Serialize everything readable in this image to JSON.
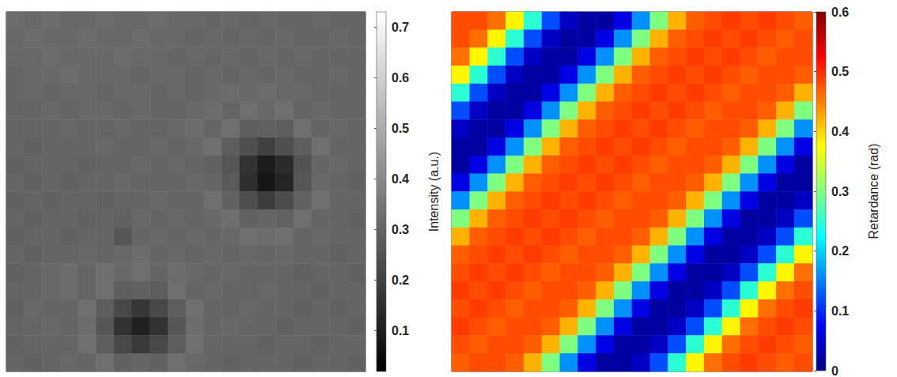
{
  "chart_data": [
    {
      "type": "heatmap",
      "color": "gray",
      "tick_labels": false,
      "cells": [
        [
          0.32,
          0.31,
          0.32,
          0.31,
          0.31,
          0.32,
          0.31,
          0.31,
          0.32,
          0.31,
          0.31,
          0.3,
          0.31,
          0.3,
          0.31,
          0.3,
          0.3,
          0.31,
          0.3,
          0.3
        ],
        [
          0.31,
          0.32,
          0.31,
          0.31,
          0.32,
          0.31,
          0.31,
          0.32,
          0.31,
          0.31,
          0.3,
          0.31,
          0.3,
          0.31,
          0.3,
          0.31,
          0.3,
          0.3,
          0.31,
          0.3
        ],
        [
          0.31,
          0.31,
          0.32,
          0.31,
          0.31,
          0.31,
          0.32,
          0.31,
          0.31,
          0.3,
          0.31,
          0.3,
          0.31,
          0.3,
          0.31,
          0.3,
          0.31,
          0.3,
          0.3,
          0.3
        ],
        [
          0.3,
          0.31,
          0.31,
          0.32,
          0.31,
          0.31,
          0.31,
          0.3,
          0.31,
          0.31,
          0.3,
          0.31,
          0.3,
          0.31,
          0.3,
          0.31,
          0.3,
          0.3,
          0.31,
          0.3
        ],
        [
          0.3,
          0.31,
          0.3,
          0.31,
          0.31,
          0.3,
          0.31,
          0.31,
          0.3,
          0.31,
          0.3,
          0.31,
          0.32,
          0.31,
          0.32,
          0.31,
          0.31,
          0.3,
          0.3,
          0.3
        ],
        [
          0.3,
          0.3,
          0.31,
          0.3,
          0.31,
          0.31,
          0.3,
          0.31,
          0.3,
          0.3,
          0.31,
          0.32,
          0.3,
          0.33,
          0.31,
          0.33,
          0.3,
          0.31,
          0.3,
          0.3
        ],
        [
          0.3,
          0.3,
          0.3,
          0.31,
          0.3,
          0.3,
          0.31,
          0.3,
          0.3,
          0.31,
          0.32,
          0.3,
          0.33,
          0.28,
          0.29,
          0.28,
          0.33,
          0.3,
          0.31,
          0.3
        ],
        [
          0.3,
          0.29,
          0.3,
          0.3,
          0.3,
          0.31,
          0.3,
          0.3,
          0.31,
          0.3,
          0.31,
          0.33,
          0.28,
          0.24,
          0.2,
          0.24,
          0.28,
          0.33,
          0.3,
          0.3
        ],
        [
          0.29,
          0.3,
          0.3,
          0.3,
          0.29,
          0.3,
          0.3,
          0.31,
          0.3,
          0.31,
          0.3,
          0.29,
          0.26,
          0.16,
          0.1,
          0.14,
          0.25,
          0.3,
          0.31,
          0.3
        ],
        [
          0.3,
          0.29,
          0.3,
          0.29,
          0.3,
          0.3,
          0.31,
          0.3,
          0.3,
          0.3,
          0.31,
          0.3,
          0.27,
          0.15,
          0.08,
          0.12,
          0.26,
          0.31,
          0.3,
          0.29
        ],
        [
          0.29,
          0.3,
          0.29,
          0.3,
          0.3,
          0.29,
          0.3,
          0.3,
          0.31,
          0.3,
          0.3,
          0.33,
          0.29,
          0.24,
          0.19,
          0.23,
          0.29,
          0.33,
          0.3,
          0.3
        ],
        [
          0.3,
          0.29,
          0.3,
          0.3,
          0.29,
          0.3,
          0.29,
          0.31,
          0.3,
          0.31,
          0.3,
          0.31,
          0.33,
          0.29,
          0.3,
          0.29,
          0.33,
          0.3,
          0.3,
          0.29
        ],
        [
          0.29,
          0.3,
          0.3,
          0.29,
          0.3,
          0.3,
          0.26,
          0.3,
          0.31,
          0.3,
          0.31,
          0.3,
          0.31,
          0.33,
          0.32,
          0.33,
          0.3,
          0.31,
          0.3,
          0.3
        ],
        [
          0.3,
          0.29,
          0.3,
          0.3,
          0.31,
          0.3,
          0.31,
          0.32,
          0.3,
          0.31,
          0.3,
          0.31,
          0.3,
          0.31,
          0.3,
          0.31,
          0.3,
          0.3,
          0.29,
          0.3
        ],
        [
          0.29,
          0.3,
          0.31,
          0.32,
          0.3,
          0.33,
          0.31,
          0.33,
          0.3,
          0.32,
          0.31,
          0.3,
          0.31,
          0.3,
          0.3,
          0.3,
          0.29,
          0.3,
          0.3,
          0.29
        ],
        [
          0.3,
          0.3,
          0.31,
          0.32,
          0.3,
          0.33,
          0.28,
          0.29,
          0.28,
          0.33,
          0.3,
          0.31,
          0.3,
          0.3,
          0.31,
          0.3,
          0.3,
          0.29,
          0.3,
          0.3
        ],
        [
          0.29,
          0.31,
          0.3,
          0.3,
          0.33,
          0.28,
          0.22,
          0.17,
          0.22,
          0.28,
          0.33,
          0.3,
          0.3,
          0.31,
          0.3,
          0.3,
          0.29,
          0.3,
          0.29,
          0.3
        ],
        [
          0.3,
          0.3,
          0.31,
          0.3,
          0.32,
          0.26,
          0.16,
          0.11,
          0.16,
          0.26,
          0.32,
          0.3,
          0.31,
          0.3,
          0.3,
          0.29,
          0.3,
          0.3,
          0.3,
          0.29
        ],
        [
          0.29,
          0.3,
          0.3,
          0.3,
          0.33,
          0.28,
          0.22,
          0.18,
          0.22,
          0.28,
          0.33,
          0.3,
          0.3,
          0.3,
          0.29,
          0.3,
          0.3,
          0.29,
          0.3,
          0.3
        ],
        [
          0.3,
          0.29,
          0.3,
          0.31,
          0.3,
          0.33,
          0.29,
          0.3,
          0.29,
          0.33,
          0.31,
          0.3,
          0.29,
          0.3,
          0.3,
          0.3,
          0.29,
          0.3,
          0.3,
          0.29
        ]
      ],
      "colorbar": {
        "label": "Intensity (a.u.)",
        "range": [
          0.02,
          0.73
        ],
        "ticks": [
          0.1,
          0.2,
          0.3,
          0.4,
          0.5,
          0.6,
          0.7
        ]
      }
    },
    {
      "type": "heatmap",
      "color": "jet",
      "tick_labels": false,
      "cells": [
        [
          0.48,
          0.48,
          0.46,
          0.38,
          0.25,
          0.12,
          0.04,
          0.02,
          0.02,
          0.06,
          0.16,
          0.3,
          0.42,
          0.47,
          0.48,
          0.49,
          0.48,
          0.49,
          0.48,
          0.47
        ],
        [
          0.48,
          0.46,
          0.38,
          0.25,
          0.12,
          0.04,
          0.02,
          0.02,
          0.06,
          0.16,
          0.3,
          0.42,
          0.47,
          0.48,
          0.49,
          0.48,
          0.49,
          0.48,
          0.47,
          0.48
        ],
        [
          0.46,
          0.38,
          0.25,
          0.12,
          0.04,
          0.02,
          0.02,
          0.06,
          0.16,
          0.3,
          0.42,
          0.47,
          0.48,
          0.49,
          0.48,
          0.49,
          0.48,
          0.47,
          0.48,
          0.48
        ],
        [
          0.38,
          0.25,
          0.12,
          0.04,
          0.02,
          0.02,
          0.06,
          0.16,
          0.3,
          0.42,
          0.47,
          0.48,
          0.49,
          0.48,
          0.49,
          0.48,
          0.47,
          0.48,
          0.48,
          0.47
        ],
        [
          0.25,
          0.12,
          0.04,
          0.02,
          0.02,
          0.06,
          0.16,
          0.3,
          0.42,
          0.47,
          0.48,
          0.49,
          0.48,
          0.49,
          0.48,
          0.47,
          0.48,
          0.48,
          0.47,
          0.42
        ],
        [
          0.12,
          0.04,
          0.02,
          0.02,
          0.06,
          0.16,
          0.3,
          0.42,
          0.47,
          0.48,
          0.49,
          0.48,
          0.49,
          0.48,
          0.47,
          0.48,
          0.48,
          0.47,
          0.42,
          0.3
        ],
        [
          0.04,
          0.02,
          0.02,
          0.06,
          0.16,
          0.3,
          0.42,
          0.47,
          0.48,
          0.49,
          0.48,
          0.49,
          0.48,
          0.47,
          0.48,
          0.48,
          0.47,
          0.42,
          0.3,
          0.16
        ],
        [
          0.02,
          0.02,
          0.06,
          0.16,
          0.3,
          0.42,
          0.47,
          0.48,
          0.49,
          0.48,
          0.49,
          0.48,
          0.47,
          0.48,
          0.48,
          0.47,
          0.42,
          0.3,
          0.16,
          0.06
        ],
        [
          0.02,
          0.06,
          0.16,
          0.3,
          0.42,
          0.47,
          0.48,
          0.49,
          0.48,
          0.49,
          0.48,
          0.47,
          0.48,
          0.48,
          0.47,
          0.42,
          0.3,
          0.16,
          0.06,
          0.02
        ],
        [
          0.06,
          0.16,
          0.3,
          0.42,
          0.47,
          0.48,
          0.49,
          0.48,
          0.49,
          0.48,
          0.47,
          0.48,
          0.48,
          0.47,
          0.42,
          0.3,
          0.16,
          0.06,
          0.02,
          0.02
        ],
        [
          0.16,
          0.3,
          0.42,
          0.47,
          0.48,
          0.49,
          0.48,
          0.49,
          0.48,
          0.47,
          0.48,
          0.48,
          0.47,
          0.42,
          0.3,
          0.16,
          0.06,
          0.02,
          0.02,
          0.04
        ],
        [
          0.3,
          0.42,
          0.47,
          0.48,
          0.49,
          0.48,
          0.49,
          0.48,
          0.47,
          0.48,
          0.48,
          0.47,
          0.42,
          0.3,
          0.16,
          0.06,
          0.02,
          0.02,
          0.04,
          0.12
        ],
        [
          0.42,
          0.47,
          0.48,
          0.49,
          0.48,
          0.49,
          0.48,
          0.47,
          0.48,
          0.48,
          0.47,
          0.42,
          0.3,
          0.16,
          0.06,
          0.02,
          0.02,
          0.04,
          0.12,
          0.25
        ],
        [
          0.47,
          0.48,
          0.49,
          0.48,
          0.49,
          0.48,
          0.47,
          0.48,
          0.48,
          0.47,
          0.42,
          0.3,
          0.16,
          0.06,
          0.02,
          0.02,
          0.04,
          0.12,
          0.25,
          0.38
        ],
        [
          0.48,
          0.49,
          0.48,
          0.49,
          0.48,
          0.47,
          0.48,
          0.48,
          0.47,
          0.42,
          0.3,
          0.16,
          0.06,
          0.02,
          0.02,
          0.04,
          0.12,
          0.25,
          0.38,
          0.46
        ],
        [
          0.49,
          0.48,
          0.49,
          0.48,
          0.47,
          0.48,
          0.48,
          0.47,
          0.42,
          0.3,
          0.16,
          0.06,
          0.02,
          0.02,
          0.04,
          0.12,
          0.25,
          0.38,
          0.46,
          0.48
        ],
        [
          0.48,
          0.49,
          0.48,
          0.47,
          0.48,
          0.48,
          0.47,
          0.42,
          0.3,
          0.16,
          0.06,
          0.02,
          0.02,
          0.04,
          0.12,
          0.25,
          0.38,
          0.46,
          0.48,
          0.49
        ],
        [
          0.49,
          0.48,
          0.47,
          0.48,
          0.48,
          0.47,
          0.42,
          0.3,
          0.16,
          0.06,
          0.02,
          0.02,
          0.04,
          0.12,
          0.25,
          0.38,
          0.46,
          0.48,
          0.49,
          0.48
        ],
        [
          0.48,
          0.47,
          0.48,
          0.48,
          0.47,
          0.42,
          0.3,
          0.16,
          0.06,
          0.02,
          0.02,
          0.04,
          0.12,
          0.25,
          0.38,
          0.46,
          0.48,
          0.49,
          0.48,
          0.47
        ],
        [
          0.47,
          0.48,
          0.48,
          0.47,
          0.42,
          0.3,
          0.16,
          0.06,
          0.02,
          0.02,
          0.04,
          0.12,
          0.25,
          0.38,
          0.46,
          0.48,
          0.49,
          0.48,
          0.47,
          0.48
        ]
      ],
      "colorbar": {
        "label": "Retardance (rad)",
        "range": [
          0,
          0.6
        ],
        "ticks": [
          0,
          0.1,
          0.2,
          0.3,
          0.4,
          0.5,
          0.6
        ]
      }
    }
  ]
}
